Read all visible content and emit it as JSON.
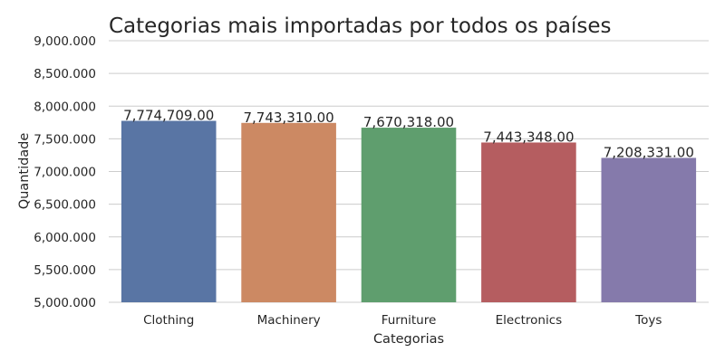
{
  "chart_data": {
    "type": "bar",
    "title": "Categorias mais importadas por todos os países",
    "xlabel": "Categorias",
    "ylabel": "Quantidade",
    "categories": [
      "Clothing",
      "Machinery",
      "Furniture",
      "Electronics",
      "Toys"
    ],
    "values": [
      7774709,
      7743310,
      7670318,
      7443348,
      7208331
    ],
    "data_labels": [
      "7,774,709.00",
      "7,743,310.00",
      "7,670,318.00",
      "7,443,348.00",
      "7,208,331.00"
    ],
    "colors": [
      "#5975a4",
      "#cc8963",
      "#5f9e6e",
      "#b55d60",
      "#857aab"
    ],
    "ylim": [
      5000000,
      9000000
    ],
    "yticks": [
      5000000,
      5500000,
      6000000,
      6500000,
      7000000,
      7500000,
      8000000,
      8500000,
      9000000
    ],
    "ytick_labels": [
      "5,000.000",
      "5,500.000",
      "6,000.000",
      "6,500.000",
      "7,000.000",
      "7,500.000",
      "8,000.000",
      "8,500.000",
      "9,000.000"
    ],
    "grid": "horizontal",
    "legend": "none"
  }
}
